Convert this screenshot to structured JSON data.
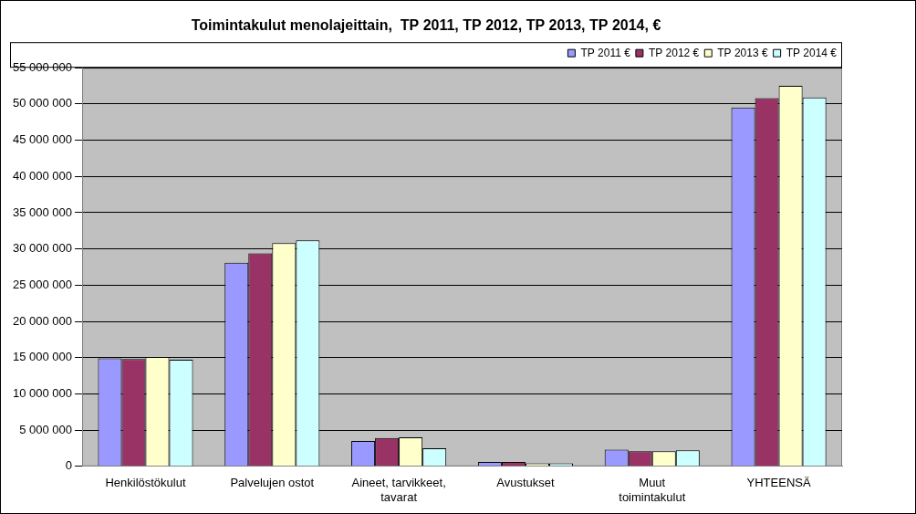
{
  "chart_data": {
    "type": "bar",
    "title": "Toimintakulut menolajeittain,  TP 2011, TP 2012, TP 2013, TP 2014, €",
    "categories": [
      "Henkilöstökulut",
      "Palvelujen ostot",
      [
        "Aineet, tarvikkeet,",
        "tavarat"
      ],
      "Avustukset",
      [
        "Muut",
        "toimintakulut"
      ],
      "YHTEENSÄ"
    ],
    "series": [
      {
        "name": "TP 2011 €",
        "color": "#9999ff",
        "values": [
          14900000,
          28100000,
          3500000,
          600000,
          2300000,
          49500000
        ]
      },
      {
        "name": "TP 2012 €",
        "color": "#993366",
        "values": [
          14800000,
          29400000,
          3900000,
          600000,
          2100000,
          50800000
        ]
      },
      {
        "name": "TP 2013 €",
        "color": "#ffffcc",
        "values": [
          15100000,
          30800000,
          4000000,
          400000,
          2100000,
          52500000
        ]
      },
      {
        "name": "TP 2014 €",
        "color": "#ccffff",
        "values": [
          14700000,
          31200000,
          2500000,
          400000,
          2200000,
          50900000
        ]
      }
    ],
    "ylim": [
      0,
      55000000
    ],
    "yticks": [
      0,
      {
        "value": 5000000,
        "label": "5 000 000"
      },
      {
        "value": 10000000,
        "label": "10 000 000"
      },
      {
        "value": 15000000,
        "label": "15 000 000"
      },
      {
        "value": 20000000,
        "label": "20 000 000"
      },
      {
        "value": 25000000,
        "label": "25 000 000"
      },
      {
        "value": 30000000,
        "label": "30 000 000"
      },
      {
        "value": 35000000,
        "label": "35 000 000"
      },
      {
        "value": 40000000,
        "label": "40 000 000"
      },
      {
        "value": 45000000,
        "label": "45 000 000"
      },
      {
        "value": 50000000,
        "label": "50 000 000"
      },
      {
        "value": 55000000,
        "label": "55 000 000"
      }
    ],
    "grid": true,
    "legend": "top-right"
  }
}
